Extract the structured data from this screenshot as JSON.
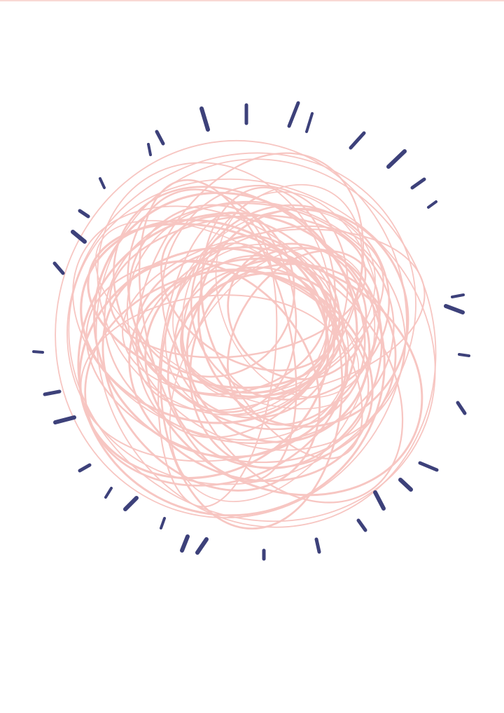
{
  "artwork": {
    "subject": "scribble-ball-icon",
    "colors": {
      "background": "#ffffff",
      "scribble": "#f7c6c2",
      "rays": "#3d417a",
      "top_edge": "#f9d9d4"
    }
  }
}
